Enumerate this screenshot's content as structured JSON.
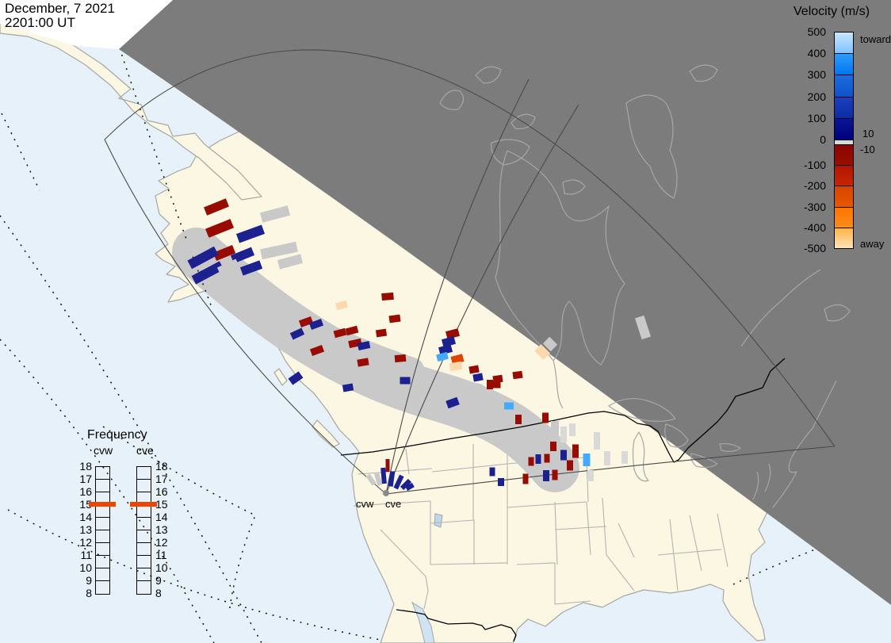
{
  "datetime": {
    "date": "December, 7 2021",
    "time": "2201:00 UT"
  },
  "velocity_legend": {
    "title": "Velocity (m/s)",
    "toward_label": "toward",
    "away_label": "away",
    "upper_threshold": "10",
    "lower_threshold": "-10",
    "ticks": [
      "500",
      "400",
      "300",
      "200",
      "100",
      "0",
      "-100",
      "-200",
      "-300",
      "-400",
      "-500"
    ],
    "segments": [
      {
        "c1": "#c6e7ff",
        "c2": "#7fc2ff"
      },
      {
        "c1": "#2e9bff",
        "c2": "#0077f0"
      },
      {
        "c1": "#1b6ce0",
        "c2": "#0f52c8"
      },
      {
        "c1": "#1a3fc0",
        "c2": "#0e2ba6"
      },
      {
        "c1": "#0b1694",
        "c2": "#00007e"
      },
      {
        "c1": "#8c0500",
        "c2": "#970f00"
      },
      {
        "c1": "#b51500",
        "c2": "#c42600"
      },
      {
        "c1": "#d84400",
        "c2": "#e65800"
      },
      {
        "c1": "#ff7300",
        "c2": "#ff8c1a"
      },
      {
        "c1": "#ffb347",
        "c2": "#ffe2b8"
      }
    ],
    "zero_band_color": "#d9d9d9"
  },
  "frequency_legend": {
    "title": "Frequency",
    "radars": [
      "cvw",
      "cve"
    ],
    "ticks": [
      "18",
      "17",
      "16",
      "15",
      "14",
      "13",
      "12",
      "11",
      "10",
      "9",
      "8"
    ],
    "marker_value": "15",
    "marker_color": "#ee4400"
  },
  "map": {
    "radar_site_labels": [
      "cvw",
      "cve"
    ],
    "colors": {
      "ocean": "#e6f1fa",
      "land": "#fbf7e2",
      "night": "#7c7c7c",
      "ground_scatter": "#c9c9c9",
      "red": "#970b00",
      "navy": "#1c218f",
      "gray": "#c9c9c9",
      "pale": "#d9d9d9",
      "lblue": "#44aaff",
      "orange": "#e04400",
      "peach": "#ffd8ae"
    },
    "cells": [
      [
        273,
        261,
        30,
        11,
        -22,
        "red"
      ],
      [
        277,
        288,
        34,
        12,
        -22,
        "red"
      ],
      [
        347,
        270,
        36,
        13,
        -15,
        "gray"
      ],
      [
        316,
        295,
        34,
        12,
        -20,
        "navy"
      ],
      [
        352,
        316,
        46,
        13,
        -12,
        "gray"
      ],
      [
        283,
        319,
        26,
        11,
        -22,
        "red"
      ],
      [
        306,
        322,
        28,
        11,
        -22,
        "navy"
      ],
      [
        256,
        325,
        38,
        12,
        -28,
        "navy"
      ],
      [
        262,
        344,
        40,
        12,
        -28,
        "navy"
      ],
      [
        288,
        337,
        26,
        11,
        -25,
        "gray"
      ],
      [
        317,
        338,
        26,
        11,
        -20,
        "navy"
      ],
      [
        250,
        306,
        30,
        11,
        -28,
        "gray"
      ],
      [
        366,
        330,
        30,
        12,
        -15,
        "gray"
      ],
      [
        431,
        385,
        14,
        9,
        -15,
        "peach"
      ],
      [
        489,
        374,
        15,
        9,
        -5,
        "red"
      ],
      [
        386,
        406,
        16,
        9,
        -20,
        "red"
      ],
      [
        399,
        409,
        16,
        9,
        -20,
        "navy"
      ],
      [
        375,
        421,
        16,
        9,
        -25,
        "navy"
      ],
      [
        400,
        442,
        16,
        9,
        -20,
        "red"
      ],
      [
        429,
        420,
        15,
        9,
        -15,
        "red"
      ],
      [
        444,
        417,
        15,
        9,
        -15,
        "red"
      ],
      [
        448,
        433,
        16,
        9,
        -12,
        "red"
      ],
      [
        459,
        436,
        15,
        9,
        -12,
        "navy"
      ],
      [
        458,
        457,
        14,
        9,
        -10,
        "red"
      ],
      [
        498,
        402,
        14,
        9,
        -8,
        "red"
      ],
      [
        481,
        420,
        13,
        9,
        -8,
        "red"
      ],
      [
        505,
        452,
        14,
        9,
        -5,
        "red"
      ],
      [
        511,
        480,
        13,
        9,
        0,
        "navy"
      ],
      [
        439,
        489,
        13,
        9,
        -10,
        "navy"
      ],
      [
        373,
        477,
        16,
        10,
        -35,
        "navy"
      ],
      [
        571,
        421,
        16,
        10,
        -15,
        "red"
      ],
      [
        566,
        431,
        16,
        10,
        -15,
        "navy"
      ],
      [
        562,
        441,
        16,
        10,
        -15,
        "navy"
      ],
      [
        558,
        450,
        14,
        9,
        -15,
        "lblue"
      ],
      [
        577,
        453,
        15,
        10,
        -15,
        "orange"
      ],
      [
        575,
        462,
        15,
        10,
        -10,
        "peach"
      ],
      [
        598,
        466,
        12,
        9,
        -10,
        "red"
      ],
      [
        603,
        476,
        12,
        9,
        -10,
        "navy"
      ],
      [
        628,
        478,
        12,
        9,
        -8,
        "red"
      ],
      [
        653,
        473,
        12,
        9,
        -8,
        "red"
      ],
      [
        571,
        508,
        15,
        10,
        -20,
        "navy"
      ],
      [
        625,
        485,
        13,
        9,
        0,
        "red"
      ],
      [
        618,
        485,
        8,
        12,
        0,
        "red"
      ],
      [
        642,
        512,
        12,
        9,
        0,
        "lblue"
      ],
      [
        654,
        529,
        8,
        12,
        0,
        "red"
      ],
      [
        688,
        527,
        8,
        13,
        0,
        "red"
      ],
      [
        698,
        563,
        8,
        12,
        0,
        "red"
      ],
      [
        711,
        574,
        8,
        13,
        0,
        "navy"
      ],
      [
        726,
        569,
        8,
        17,
        0,
        "red"
      ],
      [
        719,
        587,
        8,
        13,
        0,
        "red"
      ],
      [
        670,
        582,
        7,
        11,
        0,
        "red"
      ],
      [
        679,
        579,
        7,
        12,
        0,
        "navy"
      ],
      [
        690,
        578,
        7,
        11,
        0,
        "red"
      ],
      [
        740,
        580,
        9,
        16,
        0,
        "lblue"
      ],
      [
        621,
        595,
        7,
        11,
        0,
        "navy"
      ],
      [
        632,
        608,
        8,
        10,
        0,
        "navy"
      ],
      [
        663,
        604,
        7,
        13,
        0,
        "red"
      ],
      [
        689,
        600,
        8,
        14,
        0,
        "navy"
      ],
      [
        700,
        599,
        7,
        13,
        0,
        "red"
      ],
      [
        753,
        556,
        8,
        22,
        0,
        "pale"
      ],
      [
        766,
        578,
        8,
        18,
        0,
        "pale"
      ],
      [
        711,
        548,
        8,
        20,
        0,
        "pale"
      ],
      [
        722,
        542,
        8,
        16,
        0,
        "pale"
      ],
      [
        788,
        577,
        8,
        16,
        0,
        "pale"
      ],
      [
        745,
        600,
        8,
        14,
        0,
        "pale"
      ],
      [
        700,
        540,
        10,
        18,
        0,
        "gray"
      ],
      [
        660,
        550,
        10,
        20,
        0,
        "gray"
      ],
      [
        684,
        444,
        16,
        12,
        45,
        "peach"
      ],
      [
        694,
        434,
        14,
        12,
        45,
        "gray"
      ],
      [
        811,
        413,
        12,
        28,
        -18,
        "gray"
      ],
      [
        489,
        587,
        5,
        16,
        0,
        "red"
      ],
      [
        484,
        600,
        6,
        20,
        -5,
        "navy"
      ],
      [
        494,
        604,
        6,
        19,
        8,
        "navy"
      ],
      [
        503,
        608,
        6,
        18,
        25,
        "navy"
      ],
      [
        512,
        611,
        6,
        14,
        45,
        "navy"
      ],
      [
        517,
        614,
        6,
        10,
        60,
        "navy"
      ],
      [
        468,
        605,
        6,
        14,
        -35,
        "gray"
      ],
      [
        477,
        604,
        6,
        17,
        -15,
        "gray"
      ]
    ]
  }
}
